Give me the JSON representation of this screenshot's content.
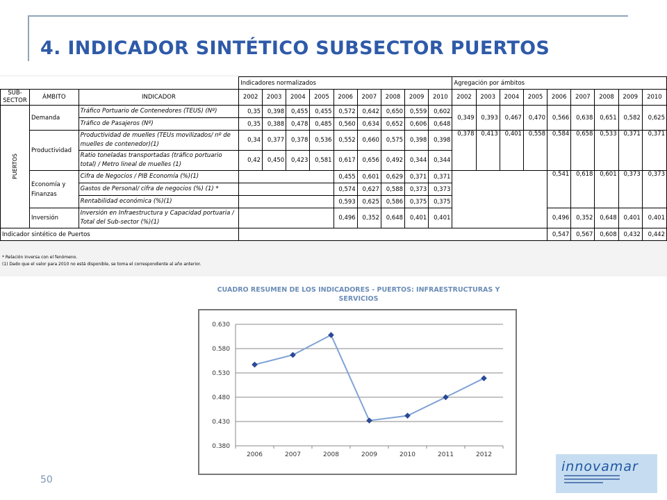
{
  "page": {
    "title": "4. INDICADOR SINTÉTICO SUBSECTOR PUERTOS",
    "page_number": "50"
  },
  "table": {
    "group_normalized": "Indicadores normalizados",
    "group_aggregation": "Agregación por ámbitos",
    "col_subsector": "SUB-SECTOR",
    "col_ambito": "ÁMBITO",
    "col_indicador": "INDICADOR",
    "years": [
      "2002",
      "2003",
      "2004",
      "2005",
      "2006",
      "2007",
      "2008",
      "2009",
      "2010"
    ],
    "subsector": "PUERTOS",
    "ambitos": {
      "demanda": "Demanda",
      "productividad": "Productividad",
      "economia": "Economía y Finanzas",
      "inversion": "Inversión"
    },
    "rows": [
      {
        "label": "Tráfico Portuario de Contenedores (TEUS) (Nº)",
        "norm": [
          "0,35",
          "0,398",
          "0,455",
          "0,455",
          "0,572",
          "0,642",
          "0,650",
          "0,559",
          "0,602"
        ],
        "agg": [
          "0,349",
          "0,393",
          "0,467",
          "0,470",
          "0,566",
          "0,638",
          "0,651",
          "0,582",
          "0,625"
        ]
      },
      {
        "label": "Tráfico de Pasajeros (Nº)",
        "norm": [
          "0,35",
          "0,388",
          "0,478",
          "0,485",
          "0,560",
          "0,634",
          "0,652",
          "0,606",
          "0,648"
        ]
      },
      {
        "label": "Productividad de muelles (TEUs movilizados/ nº de muelles de contenedor)(1)",
        "norm": [
          "0,34",
          "0,377",
          "0,378",
          "0,536",
          "0,552",
          "0,660",
          "0,575",
          "0,398",
          "0,398"
        ],
        "agg": [
          "0,378",
          "0,413",
          "0,401",
          "0,558",
          "0,584",
          "0,658",
          "0,533",
          "0,371",
          "0,371"
        ]
      },
      {
        "label": "Ratio toneladas transportadas (tráfico portuario total) / Metro lineal de muelles (1)",
        "norm": [
          "0,42",
          "0,450",
          "0,423",
          "0,581",
          "0,617",
          "0,656",
          "0,492",
          "0,344",
          "0,344"
        ]
      },
      {
        "label": "Cifra de Negocios / PIB Economía (%)(1)",
        "norm": [
          "",
          "",
          "",
          "",
          "0,455",
          "0,601",
          "0,629",
          "0,371",
          "0,371"
        ],
        "agg": [
          "",
          "",
          "",
          "",
          "0,541",
          "0,618",
          "0,601",
          "0,373",
          "0,373"
        ]
      },
      {
        "label": "Gastos de Personal/ cifra de negocios (%) (1) *",
        "norm": [
          "",
          "",
          "",
          "",
          "0,574",
          "0,627",
          "0,588",
          "0,373",
          "0,373"
        ]
      },
      {
        "label": "Rentabilidad económica (%)(1)",
        "norm": [
          "",
          "",
          "",
          "",
          "0,593",
          "0,625",
          "0,586",
          "0,375",
          "0,375"
        ]
      },
      {
        "label": "Inversión en Infraestructura y Capacidad portuaria / Total del Sub-sector (%)(1)",
        "norm": [
          "",
          "",
          "",
          "",
          "0,496",
          "0,352",
          "0,648",
          "0,401",
          "0,401"
        ],
        "agg": [
          "",
          "",
          "",
          "",
          "0,496",
          "0,352",
          "0,648",
          "0,401",
          "0,401"
        ]
      }
    ],
    "synthetic_label": "Indicador sintético de Puertos",
    "synthetic_values": [
      "",
      "",
      "",
      "",
      "0,547",
      "0,567",
      "0,608",
      "0,432",
      "0,442"
    ],
    "note_1": "* Relación inversa con el fenómeno.",
    "note_2": "(1) Dado que el valor para 2010 no está disponible, se toma el correspondiente al año anterior."
  },
  "chart": {
    "title": "CUADRO RESUMEN DE LOS INDICADORES - PUERTOS: INFRAESTRUCTURAS Y SERVICIOS"
  },
  "chart_data": {
    "type": "line",
    "title": "CUADRO RESUMEN DE LOS INDICADORES - PUERTOS: INFRAESTRUCTURAS Y SERVICIOS",
    "x": [
      "2006",
      "2007",
      "2008",
      "2009",
      "2010",
      "2011",
      "2012"
    ],
    "series": [
      {
        "values": [
          0.547,
          0.567,
          0.608,
          0.432,
          0.442,
          0.48,
          0.519
        ],
        "color": "#7fa2d6",
        "marker_color": "#2a4a9c"
      }
    ],
    "ylim": [
      0.38,
      0.63
    ],
    "yticks": [
      "0.380",
      "0.430",
      "0.480",
      "0.530",
      "0.580",
      "0.630"
    ],
    "grid": true,
    "legend": "none"
  },
  "logo": {
    "text": "innovamar"
  }
}
